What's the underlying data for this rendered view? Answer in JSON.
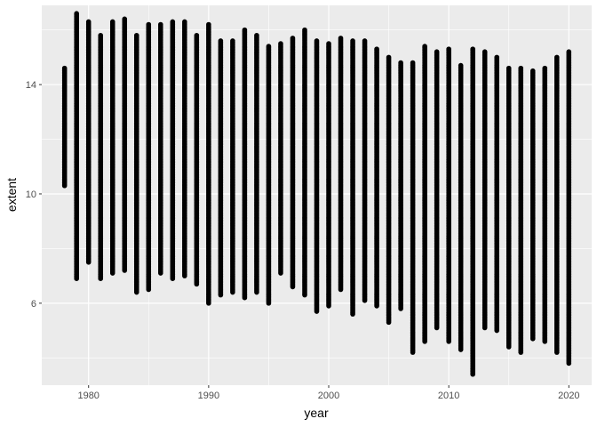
{
  "chart_data": {
    "type": "scatter",
    "xlabel": "year",
    "ylabel": "extent",
    "xlim": [
      1976.1,
      2021.9
    ],
    "ylim": [
      3.0,
      16.9
    ],
    "x_ticks": [
      1980,
      1990,
      2000,
      2010,
      2020
    ],
    "y_ticks": [
      6,
      10,
      14
    ],
    "grid": true,
    "legend": "none",
    "colors": {
      "panel": "#EBEBEB",
      "grid": "#FFFFFF",
      "point": "#000000"
    },
    "series": [
      {
        "x": [
          1978,
          1979,
          1980,
          1981,
          1982,
          1983,
          1984,
          1985,
          1986,
          1987,
          1988,
          1989,
          1990,
          1991,
          1992,
          1993,
          1994,
          1995,
          1996,
          1997,
          1998,
          1999,
          2000,
          2001,
          2002,
          2003,
          2004,
          2005,
          2006,
          2007,
          2008,
          2009,
          2010,
          2011,
          2012,
          2013,
          2014,
          2015,
          2016,
          2017,
          2018,
          2019,
          2020
        ],
        "ymin": [
          10.3,
          6.9,
          7.5,
          6.9,
          7.1,
          7.2,
          6.4,
          6.5,
          7.1,
          6.9,
          7.0,
          6.7,
          6.0,
          6.3,
          6.4,
          6.2,
          6.4,
          6.0,
          7.1,
          6.6,
          6.3,
          5.7,
          5.9,
          6.5,
          5.6,
          6.1,
          5.9,
          5.3,
          5.8,
          4.2,
          4.6,
          5.1,
          4.6,
          4.3,
          3.4,
          5.1,
          5.0,
          4.4,
          4.2,
          4.7,
          4.6,
          4.2,
          3.8
        ],
        "ymax": [
          14.6,
          16.6,
          16.3,
          15.8,
          16.3,
          16.4,
          15.8,
          16.2,
          16.2,
          16.3,
          16.3,
          15.8,
          16.2,
          15.6,
          15.6,
          16.0,
          15.8,
          15.4,
          15.5,
          15.7,
          16.0,
          15.6,
          15.5,
          15.7,
          15.6,
          15.6,
          15.3,
          15.0,
          14.8,
          14.8,
          15.4,
          15.2,
          15.3,
          14.7,
          15.3,
          15.2,
          15.0,
          14.6,
          14.6,
          14.5,
          14.6,
          15.0,
          15.2
        ]
      }
    ]
  }
}
